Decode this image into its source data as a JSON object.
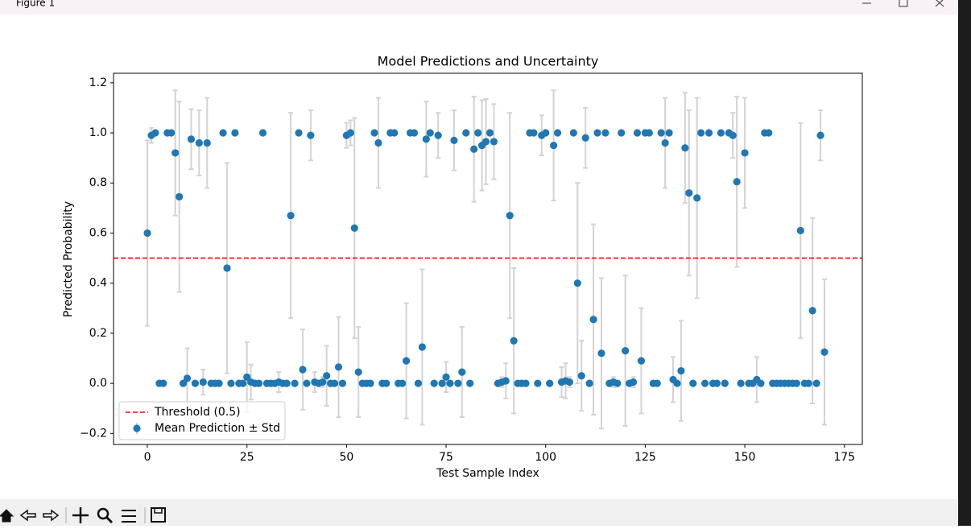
{
  "window": {
    "title": "Figure 1"
  },
  "chart_data": {
    "type": "errorbar",
    "title": "Model Predictions and Uncertainty",
    "xlabel": "Test Sample Index",
    "ylabel": "Predicted Probability",
    "x": [
      0,
      1,
      2,
      3,
      4,
      5,
      6,
      7,
      8,
      9,
      10,
      11,
      12,
      13,
      14,
      15,
      16,
      17,
      18,
      19,
      20,
      21,
      22,
      23,
      24,
      25,
      26,
      27,
      28,
      29,
      30,
      31,
      32,
      33,
      34,
      35,
      36,
      37,
      38,
      39,
      40,
      41,
      42,
      43,
      44,
      45,
      46,
      47,
      48,
      49,
      50,
      51,
      52,
      53,
      54,
      55,
      56,
      57,
      58,
      59,
      60,
      61,
      62,
      63,
      64,
      65,
      66,
      67,
      68,
      69,
      70,
      71,
      72,
      73,
      74,
      75,
      76,
      77,
      78,
      79,
      80,
      81,
      82,
      83,
      84,
      85,
      86,
      87,
      88,
      89,
      90,
      91,
      92,
      93,
      94,
      95,
      96,
      97,
      98,
      99,
      100,
      101,
      102,
      103,
      104,
      105,
      106,
      107,
      108,
      109,
      110,
      111,
      112,
      113,
      114,
      115,
      116,
      117,
      118,
      119,
      120,
      121,
      122,
      123,
      124,
      125,
      126,
      127,
      128,
      129,
      130,
      131,
      132,
      133,
      134,
      135,
      136,
      137,
      138,
      139,
      140,
      141,
      142,
      143,
      144,
      145,
      146,
      147,
      148,
      149,
      150,
      151,
      152,
      153,
      154,
      155,
      156,
      157,
      158,
      159,
      160,
      161,
      162,
      163,
      164,
      165,
      166,
      167,
      168,
      169,
      170
    ],
    "series": [
      {
        "name": "Mean Prediction ± Std",
        "color": "#1f77b4",
        "error_color": "#d3d3d3",
        "values": [
          0.6,
          0.99,
          1,
          0,
          0,
          1,
          1,
          0.92,
          0.745,
          0,
          0.02,
          0.975,
          0,
          0.96,
          0.005,
          0.96,
          0,
          0,
          0,
          1,
          0.46,
          0,
          1,
          0,
          0,
          0.025,
          0.005,
          0,
          0,
          1,
          0,
          0,
          0,
          0.005,
          0,
          0,
          0.67,
          0,
          1,
          0.055,
          0,
          0.99,
          0.005,
          0,
          0.005,
          0.03,
          0,
          0,
          0.065,
          0,
          0.99,
          1,
          0.62,
          0.045,
          0,
          0,
          0,
          1,
          0.96,
          0,
          0,
          1,
          1,
          0,
          0,
          0.09,
          1,
          1,
          0,
          0.145,
          0.975,
          1,
          0,
          0.99,
          0,
          0.025,
          0,
          0.97,
          0,
          0.045,
          1,
          0,
          0.935,
          1,
          0.95,
          0.965,
          1,
          0.965,
          0,
          0.005,
          0.01,
          0.67,
          0.17,
          0,
          0,
          0,
          1,
          1,
          0,
          0.99,
          1,
          0,
          0.95,
          1,
          0.005,
          0.01,
          0.005,
          1,
          0.4,
          0.03,
          0.98,
          0,
          0.255,
          1,
          0.12,
          1,
          0,
          0.005,
          0,
          1,
          0.13,
          0,
          0.005,
          1,
          0.09,
          1,
          1,
          0,
          0,
          1,
          0.96,
          1,
          0.015,
          0,
          0.05,
          0.94,
          0.76,
          0,
          0.74,
          1,
          0,
          1,
          0,
          0,
          1,
          0,
          1,
          0.99,
          0.805,
          0,
          0.92,
          0,
          0,
          0.015,
          0,
          1,
          1,
          0,
          0,
          0,
          0,
          0,
          0,
          0,
          0.61,
          0,
          0,
          0.29,
          0,
          0.99,
          0.125
        ],
        "errors": [
          0.37,
          0.03,
          0.005,
          0.005,
          0.005,
          0.005,
          0.005,
          0.25,
          0.38,
          0.005,
          0.12,
          0.12,
          0.005,
          0.13,
          0.05,
          0.18,
          0.005,
          0.005,
          0.005,
          0.005,
          0.42,
          0.005,
          0.005,
          0.005,
          0.005,
          0.14,
          0.07,
          0.005,
          0.005,
          0.005,
          0.005,
          0.005,
          0.005,
          0.04,
          0.005,
          0.005,
          0.41,
          0.005,
          0.005,
          0.16,
          0.005,
          0.1,
          0.04,
          0.005,
          0.02,
          0.12,
          0.005,
          0.005,
          0.2,
          0.005,
          0.05,
          0.05,
          0.44,
          0.18,
          0.005,
          0.005,
          0.005,
          0.005,
          0.18,
          0.005,
          0.005,
          0.005,
          0.005,
          0.005,
          0.005,
          0.23,
          0.005,
          0.005,
          0.005,
          0.31,
          0.15,
          0.005,
          0.005,
          0.09,
          0.005,
          0.06,
          0.005,
          0.12,
          0.005,
          0.18,
          0.005,
          0.005,
          0.21,
          0.005,
          0.18,
          0.17,
          0.005,
          0.15,
          0.005,
          0.02,
          0.07,
          0.41,
          0.29,
          0.005,
          0.005,
          0.005,
          0.005,
          0.005,
          0.005,
          0.08,
          0.005,
          0.005,
          0.22,
          0.005,
          0.06,
          0.07,
          0.02,
          0.005,
          0.4,
          0.14,
          0.12,
          0.005,
          0.38,
          0.005,
          0.3,
          0.005,
          0.005,
          0.02,
          0.005,
          0.005,
          0.3,
          0.005,
          0.02,
          0.005,
          0.21,
          0.005,
          0.005,
          0.005,
          0.005,
          0.005,
          0.18,
          0.005,
          0.09,
          0.005,
          0.2,
          0.22,
          0.33,
          0.005,
          0.4,
          0.005,
          0.005,
          0.005,
          0.005,
          0.005,
          0.005,
          0.005,
          0.005,
          0.09,
          0.34,
          0.005,
          0.22,
          0.005,
          0.005,
          0.09,
          0.005,
          0.005,
          0.005,
          0.005,
          0.005,
          0.005,
          0.005,
          0.005,
          0.005,
          0.005,
          0.43,
          0.005,
          0.005,
          0.37,
          0.005,
          0.1,
          0.29
        ]
      }
    ],
    "threshold": {
      "value": 0.5,
      "name": "Threshold (0.5)",
      "color": "#ff0000"
    },
    "xlim": [
      -8.5,
      179.5
    ],
    "xticks": [
      0,
      25,
      50,
      75,
      100,
      125,
      150,
      175
    ],
    "ylim": [
      -0.244,
      1.238
    ],
    "yticks": [
      {
        "value": -0.2,
        "label": "−0.2"
      },
      {
        "value": 0,
        "label": "0.0"
      },
      {
        "value": 0.2,
        "label": "0.2"
      },
      {
        "value": 0.4,
        "label": "0.4"
      },
      {
        "value": 0.6,
        "label": "0.6"
      },
      {
        "value": 0.8,
        "label": "0.8"
      },
      {
        "value": 1,
        "label": "1.0"
      },
      {
        "value": 1.2,
        "label": "1.2"
      }
    ],
    "legend": "lower left"
  }
}
